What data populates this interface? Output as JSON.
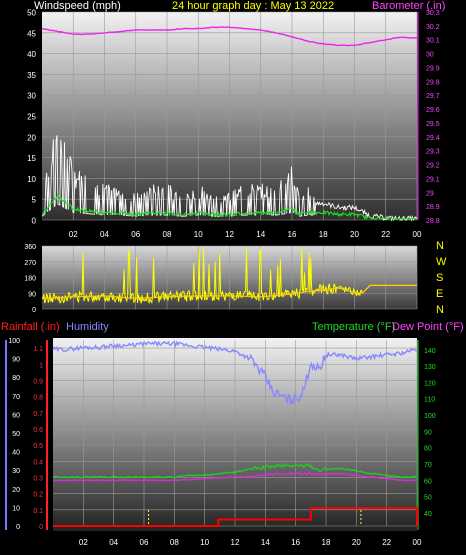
{
  "header": {
    "wind_title": "Windspeed (mph)",
    "date_title": "24 hour graph day : May 13 2022",
    "baro_title": "Barometer (.in)"
  },
  "compass": [
    "N",
    "W",
    "S",
    "E",
    "N"
  ],
  "bottom_header": {
    "rain_title": "Rainfall (.in)",
    "humidity_title": "Humidity",
    "temp_title": "Temperature (°F)",
    "dew_title": "Dew Point (°F)"
  },
  "colors": {
    "wind": "#ffffff",
    "wind_avg": "#22dd22",
    "barometer": "#ee22ee",
    "direction": "#ffff00",
    "direction_avg": "#ffcc00",
    "rain": "#ff0000",
    "rain_markers": "#ffff00",
    "humidity": "#8888ff",
    "temperature": "#22cc22",
    "dewpoint": "#cc33cc"
  },
  "chart_data": [
    {
      "type": "line",
      "id": "wind-baro",
      "x_ticks": [
        "02",
        "04",
        "06",
        "08",
        "10",
        "12",
        "14",
        "16",
        "18",
        "20",
        "22",
        "00"
      ],
      "left_axis": {
        "title": "Windspeed (mph)",
        "ticks": [
          "0",
          "5",
          "10",
          "15",
          "20",
          "25",
          "30",
          "35",
          "40",
          "45",
          "50"
        ],
        "ylim": [
          0,
          50
        ]
      },
      "right_axis": {
        "title": "Barometer (.in)",
        "ticks": [
          "28.8",
          "28.9",
          "29",
          "29.1",
          "29.2",
          "29.3",
          "29.4",
          "29.5",
          "29.6",
          "29.7",
          "29.8",
          "29.9",
          "30",
          "30.1",
          "30.2",
          "30.3"
        ],
        "ylim": [
          28.8,
          30.3
        ]
      },
      "series": [
        {
          "name": "Windspeed (mph)",
          "axis": "left",
          "x": [
            0,
            1,
            2,
            3,
            4,
            5,
            6,
            7,
            8,
            9,
            10,
            11,
            12,
            13,
            14,
            15,
            16,
            16.5,
            17,
            18,
            19,
            20,
            21,
            22,
            23,
            24
          ],
          "values": [
            3,
            13,
            6,
            5,
            4,
            4,
            3,
            4,
            4,
            3,
            4,
            3,
            3,
            4,
            4,
            4,
            6,
            3,
            4,
            4,
            3,
            3,
            1,
            0.5,
            0.3,
            0.3
          ]
        },
        {
          "name": "Barometer (.in)",
          "axis": "right",
          "x": [
            0,
            1,
            2,
            3,
            4,
            5,
            6,
            7,
            8,
            9,
            10,
            11,
            12,
            13,
            14,
            15,
            16,
            17,
            18,
            19,
            20,
            21,
            22,
            23,
            24
          ],
          "values": [
            30.18,
            30.16,
            30.14,
            30.14,
            30.15,
            30.16,
            30.17,
            30.17,
            30.17,
            30.18,
            30.18,
            30.19,
            30.19,
            30.18,
            30.17,
            30.15,
            30.12,
            30.09,
            30.07,
            30.06,
            30.06,
            30.08,
            30.1,
            30.12,
            30.11
          ]
        }
      ]
    },
    {
      "type": "line",
      "id": "wind-direction",
      "x_ticks": [
        "02",
        "04",
        "06",
        "08",
        "10",
        "12",
        "14",
        "16",
        "18",
        "20",
        "22",
        "00"
      ],
      "left_axis": {
        "ticks": [
          "0",
          "90",
          "180",
          "270",
          "360"
        ],
        "ylim": [
          0,
          360
        ]
      },
      "series": [
        {
          "name": "Wind direction",
          "x": [
            0,
            2,
            4,
            6,
            8,
            10,
            12,
            14,
            16,
            17,
            18,
            19,
            20,
            20.5,
            21,
            22,
            23,
            24
          ],
          "values": [
            60,
            70,
            75,
            60,
            70,
            75,
            75,
            70,
            85,
            100,
            110,
            120,
            95,
            90,
            135,
            135,
            135,
            135
          ]
        }
      ]
    },
    {
      "type": "line",
      "id": "temp-hum-rain",
      "x_ticks": [
        "02",
        "04",
        "06",
        "08",
        "10",
        "12",
        "14",
        "16",
        "18",
        "20",
        "22",
        "00"
      ],
      "left_axis_humidity": {
        "title": "Humidity",
        "ticks": [
          "0",
          "10",
          "20",
          "30",
          "40",
          "50",
          "60",
          "70",
          "80",
          "90",
          "100"
        ],
        "ylim": [
          0,
          100
        ]
      },
      "left_axis_rain": {
        "title": "Rainfall (.in)",
        "ticks": [
          "0",
          "0.1",
          "0.2",
          "0.3",
          "0.4",
          "0.5",
          "0.6",
          "0.7",
          "0.8",
          "0.9",
          "1",
          "1.1"
        ],
        "ylim": [
          0,
          1.15
        ]
      },
      "right_axis": {
        "title": "Temperature (°F)",
        "ticks": [
          "40",
          "50",
          "60",
          "70",
          "80",
          "90",
          "100",
          "110",
          "120",
          "130",
          "140"
        ],
        "ylim": [
          32,
          146
        ]
      },
      "series": [
        {
          "name": "Humidity",
          "axis": "humidity",
          "x": [
            0,
            1,
            2,
            3,
            4,
            5,
            6,
            7,
            8,
            9,
            10,
            11,
            12,
            13,
            14,
            14.5,
            15,
            15.5,
            16,
            16.5,
            17,
            17.5,
            18,
            19,
            20,
            21,
            22,
            23,
            24
          ],
          "values": [
            95,
            95,
            96,
            96,
            97,
            97,
            98,
            98,
            98,
            97,
            96,
            95,
            94,
            90,
            80,
            72,
            70,
            68,
            68,
            72,
            88,
            84,
            92,
            92,
            90,
            91,
            92,
            93,
            95
          ]
        },
        {
          "name": "Temperature (°F)",
          "axis": "temp",
          "x": [
            0,
            1,
            2,
            3,
            4,
            5,
            6,
            7,
            8,
            9,
            10,
            11,
            12,
            13,
            14,
            15,
            16,
            17,
            17.5,
            18,
            19,
            20,
            21,
            22,
            23,
            24
          ],
          "values": [
            62,
            62,
            62,
            62,
            62,
            62,
            62,
            62,
            62,
            63,
            63,
            64,
            65,
            67,
            68,
            69,
            69,
            69,
            66,
            67,
            67,
            66,
            64,
            63,
            62,
            62
          ]
        },
        {
          "name": "Dew Point (°F)",
          "axis": "temp",
          "x": [
            0,
            2,
            4,
            6,
            8,
            10,
            12,
            14,
            15,
            16,
            17,
            18,
            19,
            20,
            21,
            22,
            23,
            24
          ],
          "values": [
            60,
            60,
            60,
            60,
            60,
            61,
            62,
            63,
            64,
            64,
            64,
            64,
            64,
            63,
            62,
            61,
            60,
            60
          ]
        },
        {
          "name": "Rainfall (.in)",
          "axis": "rain",
          "x": [
            0,
            10.9,
            10.9,
            17,
            17,
            24,
            24
          ],
          "values": [
            0,
            0,
            0.04,
            0.04,
            0.11,
            0.11,
            0
          ]
        }
      ]
    }
  ]
}
